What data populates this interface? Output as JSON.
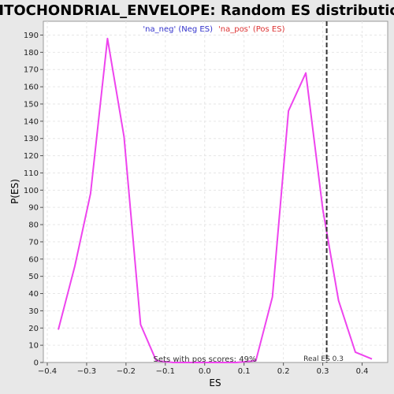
{
  "chart_data": {
    "type": "line",
    "title": "MITOCHONDRIAL_ENVELOPE: Random ES distribution",
    "xlabel": "ES",
    "ylabel": "P(ES)",
    "xlim": [
      -0.41,
      0.465
    ],
    "ylim": [
      0,
      198
    ],
    "x_ticks": [
      -0.4,
      -0.3,
      -0.2,
      -0.1,
      0.0,
      0.1,
      0.2,
      0.3,
      0.4
    ],
    "x_tick_labels": [
      "−0.4",
      "−0.3",
      "−0.2",
      "−0.1",
      "0.0",
      "0.1",
      "0.2",
      "0.3",
      "0.4"
    ],
    "y_ticks": [
      0,
      10,
      20,
      30,
      40,
      50,
      60,
      70,
      80,
      90,
      100,
      110,
      120,
      130,
      140,
      150,
      160,
      170,
      180,
      190
    ],
    "grid": true,
    "legend": {
      "placement": "top-center",
      "neg_label": "'na_neg' (Neg ES)",
      "pos_label": "'na_pos' (Pos ES)",
      "neg_color": "#3333cc",
      "pos_color": "#dd3333"
    },
    "series": [
      {
        "color": "#ee44ee",
        "x": [
          -0.372,
          -0.33,
          -0.29,
          -0.247,
          -0.205,
          -0.163,
          -0.123,
          -0.08,
          -0.04,
          0.0,
          0.04,
          0.08,
          0.13,
          0.172,
          0.213,
          0.257,
          0.3,
          0.34,
          0.383,
          0.425
        ],
        "y": [
          19,
          56,
          98,
          188,
          131,
          22,
          1,
          0,
          0,
          0,
          0,
          0,
          1,
          38,
          146,
          168,
          89,
          36,
          6,
          2
        ]
      }
    ],
    "reference_line": {
      "x": 0.31,
      "label": "Real ES 0.3",
      "style": "dashed",
      "color": "#333333"
    },
    "annotation": "Sets with pos scores: 49%"
  }
}
